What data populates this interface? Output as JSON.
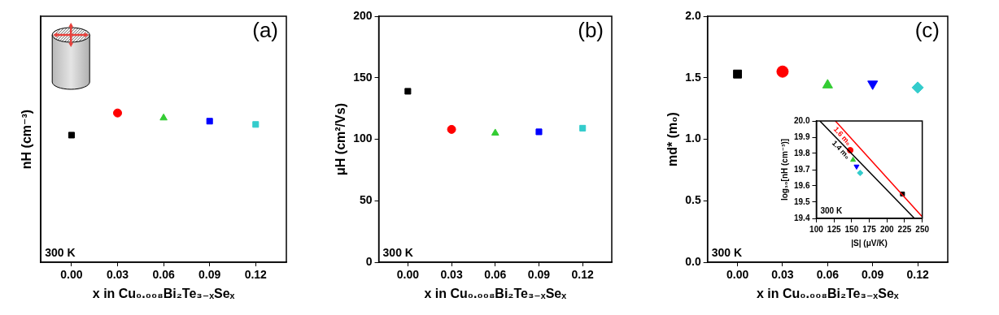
{
  "chart_data": [
    {
      "type": "scatter",
      "title": "(a)",
      "annotations": [
        "300 K"
      ],
      "x_label": "x in Cu₀.₀₀₈Bi₂Te₃₋ₓSeₓ",
      "y_label": "nH (cm⁻³)",
      "x": [
        0,
        0.03,
        0.06,
        0.09,
        0.12
      ],
      "series": [
        {
          "color": "#000000",
          "marker": "square",
          "values": [
            3.55e+19,
            null,
            null,
            null,
            null
          ]
        },
        {
          "color": "#ff0000",
          "marker": "circle",
          "values": [
            null,
            6.61e+19,
            null,
            null,
            null
          ]
        },
        {
          "color": "#33cc33",
          "marker": "triangle",
          "values": [
            null,
            null,
            5.75e+19,
            null,
            null
          ]
        },
        {
          "color": "#0000ff",
          "marker": "square",
          "values": [
            null,
            null,
            null,
            5.25e+19,
            null
          ]
        },
        {
          "color": "#33cccc",
          "marker": "square",
          "values": [
            null,
            null,
            null,
            null,
            4.79e+19
          ]
        }
      ],
      "xlim": [
        -0.02,
        0.14
      ],
      "xticks": [
        {
          "value": 0,
          "label": "0.00"
        },
        {
          "value": 0.03,
          "label": "0.03"
        },
        {
          "value": 0.06,
          "label": "0.06"
        },
        {
          "value": 0.09,
          "label": "0.09"
        },
        {
          "value": 0.12,
          "label": "0.12"
        }
      ],
      "ylim": [
        1e+18,
        1e+21
      ],
      "log": "y",
      "tick_labels": "x",
      "grid": false
    },
    {
      "type": "scatter",
      "title": "(b)",
      "annotations": [
        "300 K"
      ],
      "x_label": "x in Cu₀.₀₀₈Bi₂Te₃₋ₓSeₓ",
      "y_label": "μH (cm²/Vs)",
      "x": [
        0,
        0.03,
        0.06,
        0.09,
        0.12
      ],
      "series": [
        {
          "color": "#000000",
          "marker": "square",
          "values": [
            139,
            null,
            null,
            null,
            null
          ]
        },
        {
          "color": "#ff0000",
          "marker": "circle",
          "values": [
            null,
            108,
            null,
            null,
            null
          ]
        },
        {
          "color": "#33cc33",
          "marker": "triangle",
          "values": [
            null,
            null,
            105,
            null,
            null
          ]
        },
        {
          "color": "#0000ff",
          "marker": "square",
          "values": [
            null,
            null,
            null,
            106,
            null
          ]
        },
        {
          "color": "#33cccc",
          "marker": "square",
          "values": [
            null,
            null,
            null,
            null,
            109
          ]
        }
      ],
      "xlim": [
        -0.02,
        0.14
      ],
      "xticks": [
        {
          "value": 0,
          "label": "0.00"
        },
        {
          "value": 0.03,
          "label": "0.03"
        },
        {
          "value": 0.06,
          "label": "0.06"
        },
        {
          "value": 0.09,
          "label": "0.09"
        },
        {
          "value": 0.12,
          "label": "0.12"
        }
      ],
      "ylim": [
        0,
        200
      ],
      "yticks": [
        0,
        50,
        100,
        150,
        200
      ],
      "grid": false
    },
    {
      "type": "scatter",
      "title": "(c)",
      "annotations": [
        "300 K"
      ],
      "x_label": "x in Cu₀.₀₀₈Bi₂Te₃₋ₓSeₓ",
      "y_label": "md* (m₀)",
      "x": [
        0,
        0.03,
        0.06,
        0.09,
        0.12
      ],
      "series": [
        {
          "color": "#000000",
          "marker": "square",
          "values": [
            1.53,
            null,
            null,
            null,
            null
          ]
        },
        {
          "color": "#ff0000",
          "marker": "circle",
          "values": [
            null,
            1.55,
            null,
            null,
            null
          ]
        },
        {
          "color": "#33cc33",
          "marker": "triangle",
          "values": [
            null,
            null,
            1.44,
            null,
            null
          ]
        },
        {
          "color": "#0000ff",
          "marker": "triangle_down",
          "values": [
            null,
            null,
            null,
            1.45,
            null
          ]
        },
        {
          "color": "#33cccc",
          "marker": "diamond",
          "values": [
            null,
            null,
            null,
            null,
            1.42
          ]
        }
      ],
      "xlim": [
        -0.02,
        0.14
      ],
      "xticks": [
        {
          "value": 0,
          "label": "0.00"
        },
        {
          "value": 0.03,
          "label": "0.03"
        },
        {
          "value": 0.06,
          "label": "0.06"
        },
        {
          "value": 0.09,
          "label": "0.09"
        },
        {
          "value": 0.12,
          "label": "0.12"
        }
      ],
      "ylim": [
        0,
        2
      ],
      "yticks": [
        {
          "value": 0,
          "label": "0.0"
        },
        0.5,
        {
          "value": 1,
          "label": "1.0"
        },
        1.5,
        {
          "value": 2,
          "label": "2.0"
        }
      ],
      "grid": false
    },
    {
      "type": "scatter",
      "annotations": [
        "300 K"
      ],
      "x_label": "|S| (μV/K)",
      "y_label": "log₁₀[nH (cm⁻³)]",
      "series": [
        {
          "name": "1.6 m₀",
          "type": "line",
          "line_style": "solid",
          "color": "#ff0000",
          "x": [
            127,
            252
          ],
          "values": [
            20.0,
            19.4
          ]
        },
        {
          "name": "1.4 m₀",
          "type": "line",
          "line_style": "solid",
          "color": "#000000",
          "x": [
            105,
            239
          ],
          "values": [
            20.0,
            19.4
          ]
        },
        {
          "color": "#000000",
          "marker": "square",
          "x": [
            222
          ],
          "values": [
            19.55
          ]
        },
        {
          "color": "#ff0000",
          "marker": "circle",
          "x": [
            148
          ],
          "values": [
            19.82
          ]
        },
        {
          "color": "#33cc33",
          "marker": "triangle",
          "x": [
            152
          ],
          "values": [
            19.76
          ]
        },
        {
          "color": "#0000ff",
          "marker": "triangle_down",
          "x": [
            157
          ],
          "values": [
            19.72
          ]
        },
        {
          "color": "#33cccc",
          "marker": "diamond",
          "x": [
            162
          ],
          "values": [
            19.68
          ]
        }
      ],
      "xlim": [
        100,
        250
      ],
      "xticks": [
        100,
        125,
        150,
        175,
        200,
        225,
        250
      ],
      "ylim": [
        19.4,
        20.0
      ],
      "yticks": [
        19.4,
        19.5,
        19.6,
        19.7,
        19.8,
        19.9,
        {
          "value": 20.0,
          "label": "20.0"
        }
      ],
      "grid": false
    }
  ]
}
